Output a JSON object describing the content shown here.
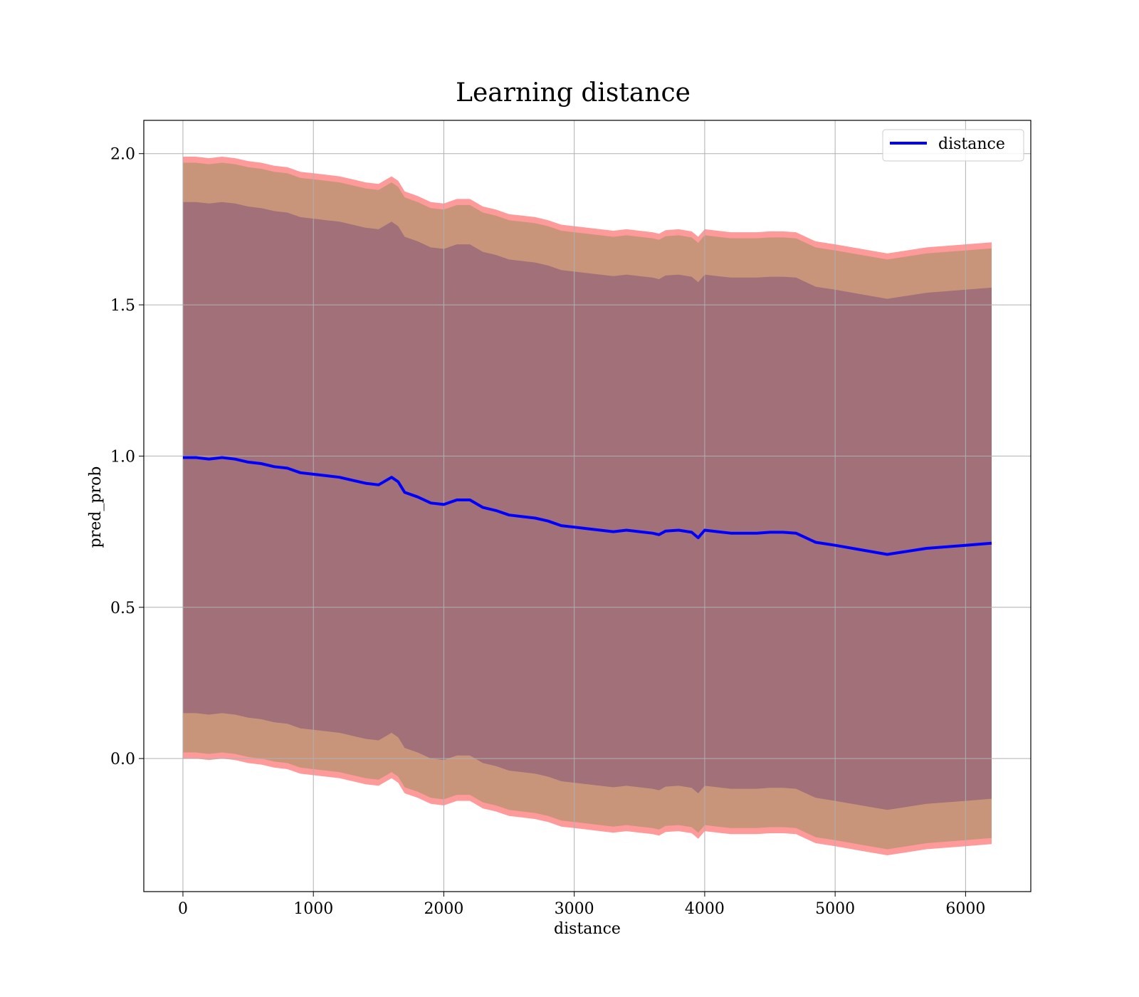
{
  "chart_data": {
    "type": "line",
    "title": "Learning distance",
    "xlabel": "distance",
    "ylabel": "pred_prob",
    "xlim": [
      -300,
      6500
    ],
    "ylim": [
      -0.44,
      2.11
    ],
    "xticks": [
      {
        "value": 0,
        "label": "0"
      },
      {
        "value": 1000,
        "label": "1000"
      },
      {
        "value": 2000,
        "label": "2000"
      },
      {
        "value": 3000,
        "label": "3000"
      },
      {
        "value": 4000,
        "label": "4000"
      },
      {
        "value": 5000,
        "label": "5000"
      },
      {
        "value": 6000,
        "label": "6000"
      }
    ],
    "yticks": [
      {
        "value": 0.0,
        "label": "0.0"
      },
      {
        "value": 0.5,
        "label": "0.5"
      },
      {
        "value": 1.0,
        "label": "1.0"
      },
      {
        "value": 1.5,
        "label": "1.5"
      },
      {
        "value": 2.0,
        "label": "2.0"
      }
    ],
    "grid": true,
    "legend_position": "top-right",
    "colors": {
      "line": "#0000ff",
      "band_outer": "#ff9a9a",
      "band_middle": "#c9957a",
      "band_inner": "#a17079",
      "grid": "#b0b0b0"
    },
    "series": [
      {
        "name": "distance",
        "x": [
          0,
          100,
          200,
          300,
          400,
          500,
          600,
          700,
          800,
          900,
          1000,
          1100,
          1200,
          1300,
          1400,
          1500,
          1600,
          1650,
          1700,
          1800,
          1900,
          2000,
          2100,
          2200,
          2300,
          2400,
          2500,
          2600,
          2700,
          2800,
          2900,
          3000,
          3100,
          3200,
          3300,
          3400,
          3500,
          3600,
          3650,
          3700,
          3800,
          3900,
          3950,
          4000,
          4100,
          4200,
          4300,
          4400,
          4500,
          4600,
          4700,
          4850,
          5000,
          5200,
          5400,
          5700,
          6000,
          6200
        ],
        "y": [
          0.995,
          0.995,
          0.99,
          0.995,
          0.99,
          0.98,
          0.975,
          0.965,
          0.96,
          0.945,
          0.94,
          0.935,
          0.93,
          0.92,
          0.91,
          0.905,
          0.93,
          0.915,
          0.88,
          0.865,
          0.845,
          0.84,
          0.855,
          0.855,
          0.83,
          0.82,
          0.805,
          0.8,
          0.795,
          0.785,
          0.77,
          0.765,
          0.76,
          0.755,
          0.75,
          0.755,
          0.75,
          0.745,
          0.74,
          0.752,
          0.755,
          0.748,
          0.73,
          0.755,
          0.75,
          0.745,
          0.745,
          0.745,
          0.748,
          0.748,
          0.745,
          0.715,
          0.705,
          0.69,
          0.675,
          0.695,
          0.705,
          0.712
        ],
        "band_inner_halfwidth": 0.845,
        "band_middle_halfwidth": 0.975,
        "band_outer_halfwidth": 0.995
      }
    ]
  }
}
